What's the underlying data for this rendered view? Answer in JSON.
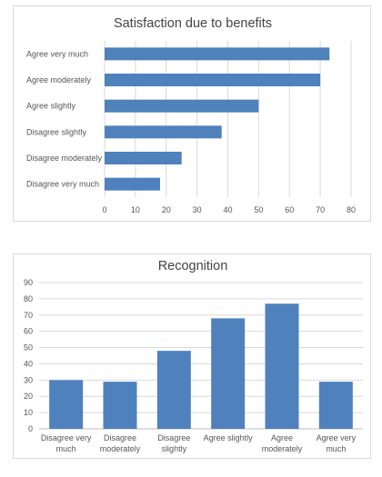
{
  "chart_data": [
    {
      "type": "bar",
      "orientation": "horizontal",
      "title": "Satisfaction due to benefits",
      "categories": [
        "Agree very much",
        "Agree moderately",
        "Agree slightly",
        "Disagree slightly",
        "Disagree moderately",
        "Disagree very much"
      ],
      "values": [
        73,
        70,
        50,
        38,
        25,
        18
      ],
      "xlim": [
        0,
        80
      ],
      "xticks": [
        "0",
        "10",
        "20",
        "30",
        "40",
        "50",
        "60",
        "70",
        "80"
      ],
      "grid": true,
      "bar_color": "#4f81bd"
    },
    {
      "type": "bar",
      "orientation": "vertical",
      "title": "Recognition",
      "categories": [
        [
          "Disagree very",
          "much"
        ],
        [
          "Disagree",
          "moderately"
        ],
        [
          "Disagree",
          "slightly"
        ],
        [
          "Agree slightly"
        ],
        [
          "Agree",
          "moderately"
        ],
        [
          "Agree very",
          "much"
        ]
      ],
      "values": [
        30,
        29,
        48,
        68,
        77,
        29
      ],
      "ylim": [
        0,
        90
      ],
      "yticks": [
        "0",
        "10",
        "20",
        "30",
        "40",
        "50",
        "60",
        "70",
        "80",
        "90"
      ],
      "grid": true,
      "bar_color": "#4f81bd"
    }
  ]
}
